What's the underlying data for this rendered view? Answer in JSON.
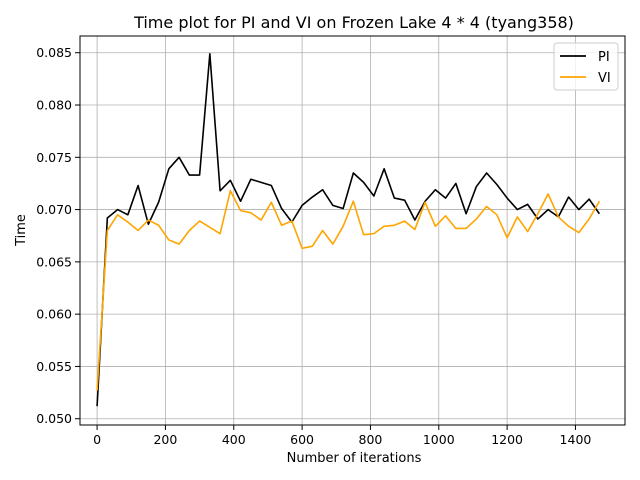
{
  "chart_data": {
    "type": "line",
    "title": "Time plot for PI and VI on Frozen Lake 4 * 4 (tyang358)",
    "xlabel": "Number of iterations",
    "ylabel": "Time",
    "xlim": [
      -50,
      1545
    ],
    "ylim": [
      0.0494,
      0.0866
    ],
    "grid": true,
    "legend_position": "top-right",
    "x_ticks": [
      {
        "value": 0,
        "label": "0"
      },
      {
        "value": 200,
        "label": "200"
      },
      {
        "value": 400,
        "label": "400"
      },
      {
        "value": 600,
        "label": "600"
      },
      {
        "value": 800,
        "label": "800"
      },
      {
        "value": 1000,
        "label": "1000"
      },
      {
        "value": 1200,
        "label": "1200"
      },
      {
        "value": 1400,
        "label": "1400"
      }
    ],
    "y_ticks": [
      {
        "value": 0.05,
        "label": "0.050"
      },
      {
        "value": 0.055,
        "label": "0.055"
      },
      {
        "value": 0.06,
        "label": "0.060"
      },
      {
        "value": 0.065,
        "label": "0.065"
      },
      {
        "value": 0.07,
        "label": "0.070"
      },
      {
        "value": 0.075,
        "label": "0.075"
      },
      {
        "value": 0.08,
        "label": "0.080"
      },
      {
        "value": 0.085,
        "label": "0.085"
      }
    ],
    "x": [
      0,
      30,
      60,
      90,
      120,
      150,
      180,
      210,
      240,
      270,
      300,
      330,
      360,
      390,
      420,
      450,
      480,
      510,
      540,
      570,
      600,
      630,
      660,
      690,
      720,
      750,
      780,
      810,
      840,
      870,
      900,
      930,
      960,
      990,
      1020,
      1050,
      1080,
      1110,
      1140,
      1170,
      1200,
      1230,
      1260,
      1290,
      1320,
      1350,
      1380,
      1410,
      1440,
      1470
    ],
    "series": [
      {
        "name": "PI",
        "color": "#000000",
        "values": [
          0.0512,
          0.0692,
          0.07,
          0.0695,
          0.0723,
          0.0686,
          0.0707,
          0.0739,
          0.075,
          0.0733,
          0.0733,
          0.0849,
          0.0718,
          0.0728,
          0.0708,
          0.0729,
          0.0726,
          0.0723,
          0.0701,
          0.0688,
          0.0704,
          0.0712,
          0.0719,
          0.0704,
          0.0701,
          0.0735,
          0.0726,
          0.0713,
          0.0739,
          0.0711,
          0.0709,
          0.069,
          0.0708,
          0.0719,
          0.0711,
          0.0725,
          0.0696,
          0.0722,
          0.0735,
          0.0724,
          0.0711,
          0.07,
          0.0705,
          0.0691,
          0.07,
          0.0693,
          0.0712,
          0.07,
          0.071,
          0.0696
        ]
      },
      {
        "name": "VI",
        "color": "#ffa500",
        "values": [
          0.0527,
          0.068,
          0.0695,
          0.0688,
          0.068,
          0.069,
          0.0685,
          0.0671,
          0.0667,
          0.068,
          0.0689,
          0.0683,
          0.0677,
          0.0718,
          0.0699,
          0.0697,
          0.069,
          0.0707,
          0.0685,
          0.0689,
          0.0663,
          0.0665,
          0.068,
          0.0667,
          0.0684,
          0.0708,
          0.0676,
          0.0677,
          0.0684,
          0.0685,
          0.0689,
          0.0681,
          0.0707,
          0.0684,
          0.0694,
          0.0682,
          0.0682,
          0.0691,
          0.0703,
          0.0695,
          0.0673,
          0.0693,
          0.0679,
          0.0696,
          0.0715,
          0.0693,
          0.0684,
          0.0678,
          0.0691,
          0.0708
        ]
      }
    ]
  }
}
